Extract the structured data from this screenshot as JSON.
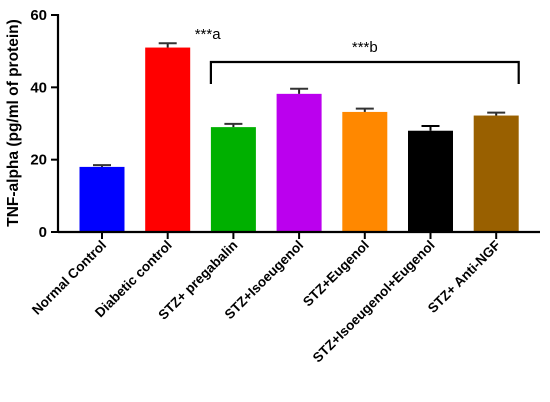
{
  "chart_data": {
    "type": "bar",
    "ylabel": "TNF-alpha (pg/ml of protein)",
    "ylim": [
      0,
      60
    ],
    "yticks": [
      0,
      20,
      40,
      60
    ],
    "categories": [
      "Normal Control",
      "Diabetic control",
      "STZ+ pregabalin",
      "STZ+Isoeugenol",
      "STZ+Eugenol",
      "STZ+Isoeugenol+Eugenol",
      "STZ+ Anti-NGF"
    ],
    "values": [
      18,
      51,
      29,
      38.2,
      33.2,
      28,
      32.2
    ],
    "errors": [
      0.5,
      1.2,
      0.9,
      1.4,
      0.9,
      1.3,
      0.8
    ],
    "colors": [
      "#0000ff",
      "#ff0000",
      "#00b000",
      "#bb00ee",
      "#ff8800",
      "#000000",
      "#996000"
    ],
    "annotations": [
      {
        "text": "***a",
        "category": "Diabetic control"
      },
      {
        "text": "***b",
        "from_category": "STZ+ pregabalin",
        "to_category": "STZ+ Anti-NGF",
        "bracket_y": 47
      }
    ]
  }
}
